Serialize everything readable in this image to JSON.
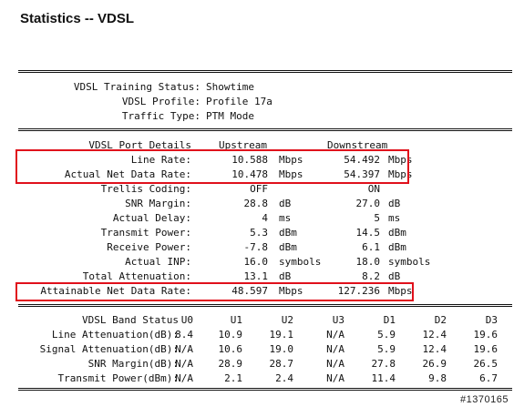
{
  "title": "Statistics -- VDSL",
  "status": {
    "training_label": "VDSL Training Status:",
    "training_value": "Showtime",
    "profile_label": "VDSL Profile:",
    "profile_value": "Profile 17a",
    "traffic_label": "Traffic Type:",
    "traffic_value": "PTM Mode"
  },
  "port": {
    "header_label": "VDSL Port Details",
    "header_up": "Upstream",
    "header_down": "Downstream",
    "rows": [
      {
        "label": "Line Rate:",
        "up": "10.588",
        "up_unit": "Mbps",
        "down": "54.492",
        "down_unit": "Mbps"
      },
      {
        "label": "Actual Net Data Rate:",
        "up": "10.478",
        "up_unit": "Mbps",
        "down": "54.397",
        "down_unit": "Mbps"
      },
      {
        "label": "Trellis Coding:",
        "up": "OFF",
        "up_unit": "",
        "down": "ON",
        "down_unit": ""
      },
      {
        "label": "SNR Margin:",
        "up": "28.8",
        "up_unit": "dB",
        "down": "27.0",
        "down_unit": "dB"
      },
      {
        "label": "Actual Delay:",
        "up": "4",
        "up_unit": "ms",
        "down": "5",
        "down_unit": "ms"
      },
      {
        "label": "Transmit Power:",
        "up": "5.3",
        "up_unit": "dBm",
        "down": "14.5",
        "down_unit": "dBm"
      },
      {
        "label": "Receive Power:",
        "up": "-7.8",
        "up_unit": "dBm",
        "down": "6.1",
        "down_unit": "dBm"
      },
      {
        "label": "Actual INP:",
        "up": "16.0",
        "up_unit": "symbols",
        "down": "18.0",
        "down_unit": "symbols"
      },
      {
        "label": "Total Attenuation:",
        "up": "13.1",
        "up_unit": "dB",
        "down": "8.2",
        "down_unit": "dB"
      },
      {
        "label": "Attainable Net Data Rate:",
        "up": "48.597",
        "up_unit": "Mbps",
        "down": "127.236",
        "down_unit": "Mbps"
      }
    ]
  },
  "band": {
    "header_label": "VDSL Band Status",
    "columns": [
      "U0",
      "U1",
      "U2",
      "U3",
      "D1",
      "D2",
      "D3"
    ],
    "rows": [
      {
        "label": "Line Attenuation(dB):",
        "values": [
          "8.4",
          "10.9",
          "19.1",
          "N/A",
          "5.9",
          "12.4",
          "19.6"
        ]
      },
      {
        "label": "Signal Attenuation(dB):",
        "values": [
          "N/A",
          "10.6",
          "19.0",
          "N/A",
          "5.9",
          "12.4",
          "19.6"
        ]
      },
      {
        "label": "SNR Margin(dB):",
        "values": [
          "N/A",
          "28.9",
          "28.7",
          "N/A",
          "27.8",
          "26.9",
          "26.5"
        ]
      },
      {
        "label": "Transmit Power(dBm):",
        "values": [
          "N/A",
          "2.1",
          "2.4",
          "N/A",
          "11.4",
          "9.8",
          "6.7"
        ]
      }
    ]
  },
  "watermark": "#1370165",
  "colors": {
    "highlight": "#e0101b"
  }
}
